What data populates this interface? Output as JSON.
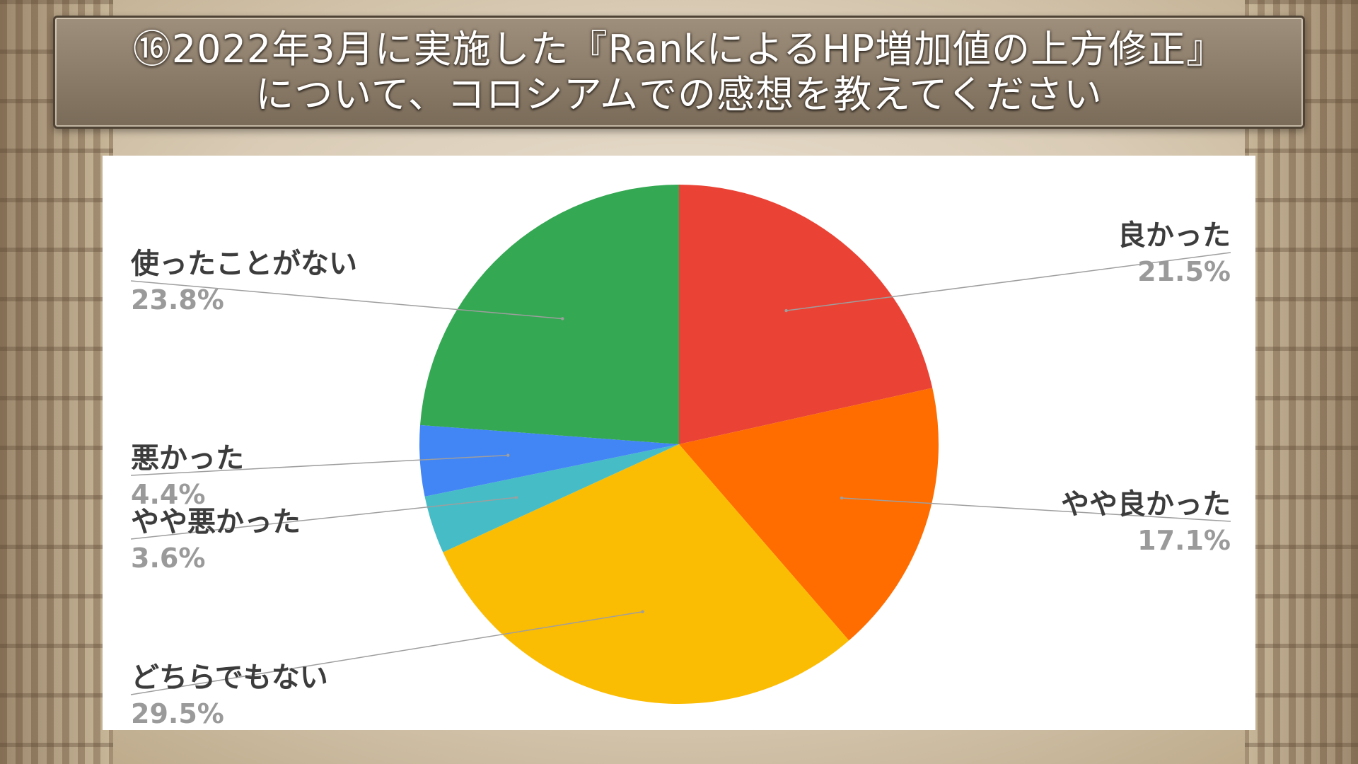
{
  "title": {
    "line1": "⑯2022年3月に実施した『RankによるHP増加値の上方修正』",
    "line2": "について、コロシアムでの感想を教えてください"
  },
  "chart_data": {
    "type": "pie",
    "start_angle": "12 o'clock",
    "direction": "clockwise",
    "slices": [
      {
        "label": "良かった",
        "value": 21.5,
        "value_label": "21.5%",
        "color": "#ea4335",
        "label_side": "right"
      },
      {
        "label": "やや良かった",
        "value": 17.1,
        "value_label": "17.1%",
        "color": "#ff6d01",
        "label_side": "right"
      },
      {
        "label": "どちらでもない",
        "value": 29.5,
        "value_label": "29.5%",
        "color": "#fbbc04",
        "label_side": "left"
      },
      {
        "label": "やや悪かった",
        "value": 3.6,
        "value_label": "3.6%",
        "color": "#46bdc6",
        "label_side": "left"
      },
      {
        "label": "悪かった",
        "value": 4.4,
        "value_label": "4.4%",
        "color": "#4285f4",
        "label_side": "left"
      },
      {
        "label": "使ったことがない",
        "value": 23.8,
        "value_label": "23.8%",
        "color": "#34a853",
        "label_side": "left"
      }
    ]
  }
}
